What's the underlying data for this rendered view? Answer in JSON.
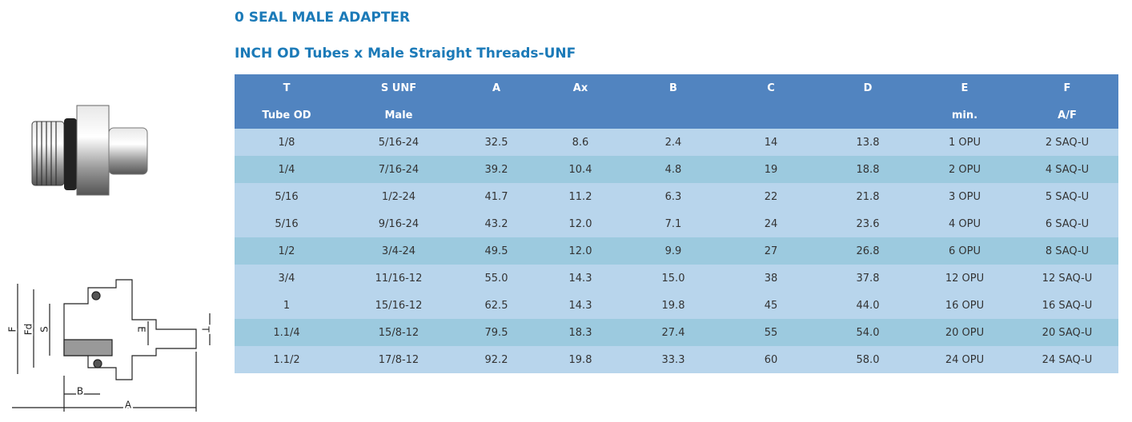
{
  "header": {
    "title": "0 SEAL MALE ADAPTER",
    "subtitle": "INCH OD Tubes x Male Straight Threads-UNF"
  },
  "drawing": {
    "labels": [
      "F",
      "Fd",
      "S",
      "E",
      "T",
      "B",
      "A"
    ]
  },
  "table": {
    "headers": [
      "T",
      "S UNF",
      "A",
      "Ax",
      "B",
      "C",
      "D",
      "E",
      "F"
    ],
    "subheaders": [
      "Tube OD",
      "Male",
      null,
      null,
      null,
      null,
      null,
      "min.",
      "A/F"
    ],
    "rows": [
      [
        "1/8",
        "5/16-24",
        "32.5",
        "8.6",
        "2.4",
        "14",
        "13.8",
        "1 OPU",
        "2 SAQ-U"
      ],
      [
        "1/4",
        "7/16-24",
        "39.2",
        "10.4",
        "4.8",
        "19",
        "18.8",
        "2 OPU",
        "4 SAQ-U"
      ],
      [
        "5/16",
        "1/2-24",
        "41.7",
        "11.2",
        "6.3",
        "22",
        "21.8",
        "3 OPU",
        "5 SAQ-U"
      ],
      [
        "5/16",
        "9/16-24",
        "43.2",
        "12.0",
        "7.1",
        "24",
        "23.6",
        "4 OPU",
        "6 SAQ-U"
      ],
      [
        "1/2",
        "3/4-24",
        "49.5",
        "12.0",
        "9.9",
        "27",
        "26.8",
        "6 OPU",
        "8 SAQ-U"
      ],
      [
        "3/4",
        "11/16-12",
        "55.0",
        "14.3",
        "15.0",
        "38",
        "37.8",
        "12 OPU",
        "12 SAQ-U"
      ],
      [
        "1",
        "15/16-12",
        "62.5",
        "14.3",
        "19.8",
        "45",
        "44.0",
        "16 OPU",
        "16 SAQ-U"
      ],
      [
        "1.1/4",
        "15/8-12",
        "79.5",
        "18.3",
        "27.4",
        "55",
        "54.0",
        "20 OPU",
        "20 SAQ-U"
      ],
      [
        "1.1/2",
        "17/8-12",
        "92.2",
        "19.8",
        "33.3",
        "60",
        "58.0",
        "24 OPU",
        "24 SAQ-U"
      ]
    ]
  }
}
